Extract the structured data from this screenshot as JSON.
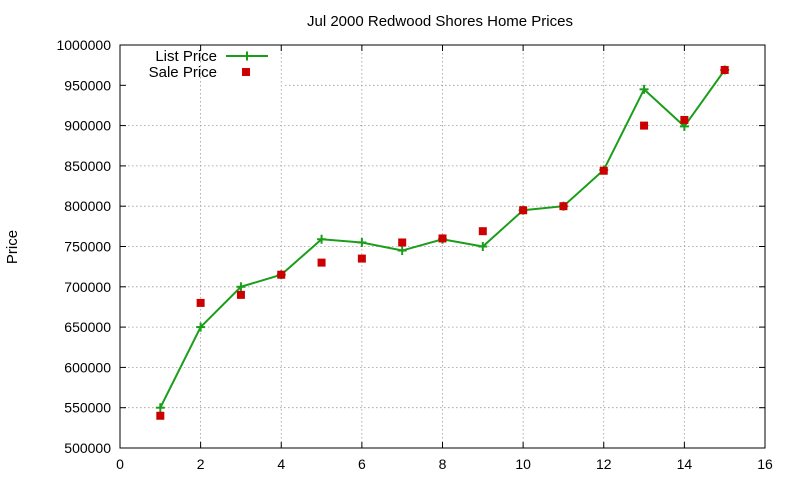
{
  "chart_data": {
    "type": "line",
    "title": "Jul 2000 Redwood Shores Home Prices",
    "xlabel": "",
    "ylabel": "Price",
    "xlim": [
      0,
      16
    ],
    "ylim": [
      500000,
      1000000
    ],
    "xticks": [
      0,
      2,
      4,
      6,
      8,
      10,
      12,
      14,
      16
    ],
    "yticks": [
      500000,
      550000,
      600000,
      650000,
      700000,
      750000,
      800000,
      850000,
      900000,
      950000,
      1000000
    ],
    "grid": true,
    "legend_position": "top-left",
    "series": [
      {
        "name": "List Price",
        "style": "line-with-plus-markers",
        "color": "#1a9e1a",
        "x": [
          1,
          2,
          3,
          4,
          5,
          6,
          7,
          8,
          9,
          10,
          11,
          12,
          13,
          14,
          15
        ],
        "y": [
          550000,
          650000,
          700000,
          715000,
          759000,
          755000,
          745000,
          759000,
          750000,
          795000,
          800000,
          845000,
          945000,
          899000,
          969000
        ]
      },
      {
        "name": "Sale Price",
        "style": "square-markers",
        "color": "#cc0000",
        "x": [
          1,
          2,
          3,
          4,
          5,
          6,
          7,
          8,
          9,
          10,
          11,
          12,
          13,
          14,
          15
        ],
        "y": [
          540000,
          680000,
          690000,
          715000,
          730000,
          735000,
          755000,
          760000,
          769000,
          795000,
          800000,
          844000,
          900000,
          907000,
          969000
        ]
      }
    ]
  }
}
